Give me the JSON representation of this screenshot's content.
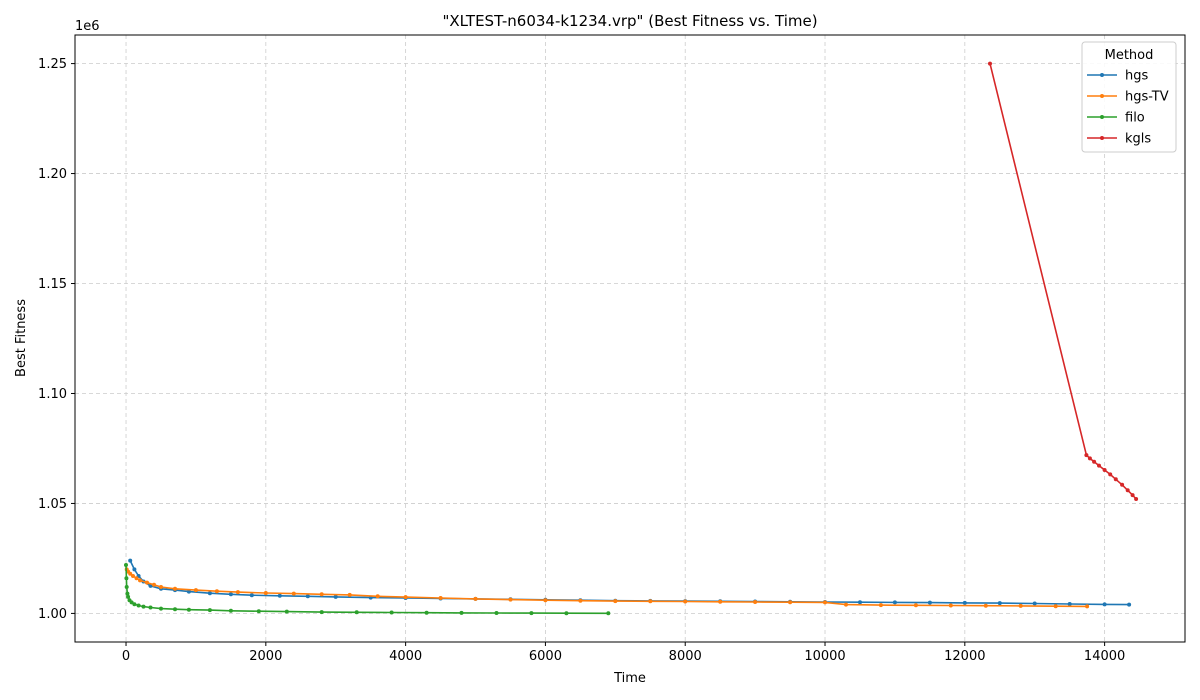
{
  "chart_data": {
    "type": "line",
    "title": "\"XLTEST-n6034-k1234.vrp\" (Best Fitness vs. Time)",
    "xlabel": "Time",
    "ylabel": "Best Fitness",
    "y_offset_label": "1e6",
    "xlim": [
      -730,
      15150
    ],
    "ylim": [
      987000,
      1263000
    ],
    "x_ticks": [
      0,
      2000,
      4000,
      6000,
      8000,
      10000,
      12000,
      14000
    ],
    "x_tick_labels": [
      "0",
      "2000",
      "4000",
      "6000",
      "8000",
      "10000",
      "12000",
      "14000"
    ],
    "y_ticks": [
      1000000,
      1050000,
      1100000,
      1150000,
      1200000,
      1250000
    ],
    "y_tick_labels": [
      "1.00",
      "1.05",
      "1.10",
      "1.15",
      "1.20",
      "1.25"
    ],
    "grid": true,
    "legend": {
      "title": "Method",
      "position": "top-right"
    },
    "series": [
      {
        "name": "hgs",
        "color": "#1f77b4",
        "x": [
          60,
          120,
          180,
          250,
          350,
          500,
          700,
          900,
          1200,
          1500,
          1800,
          2200,
          2600,
          3000,
          3500,
          4000,
          4500,
          5000,
          5500,
          6000,
          6500,
          7000,
          7500,
          8000,
          8500,
          9000,
          9500,
          10000,
          10500,
          11000,
          11500,
          12000,
          12500,
          13000,
          13500,
          14000,
          14350
        ],
        "values": [
          1024000,
          1020000,
          1017000,
          1014500,
          1012500,
          1011200,
          1010600,
          1009900,
          1009200,
          1008700,
          1008300,
          1008000,
          1007800,
          1007500,
          1007200,
          1007000,
          1006800,
          1006600,
          1006400,
          1006200,
          1006000,
          1005800,
          1005700,
          1005600,
          1005500,
          1005400,
          1005300,
          1005200,
          1005100,
          1005000,
          1004900,
          1004800,
          1004700,
          1004500,
          1004300,
          1004100,
          1004000
        ]
      },
      {
        "name": "hgs-TV",
        "color": "#ff7f0e",
        "x": [
          10,
          30,
          60,
          100,
          150,
          200,
          300,
          400,
          500,
          700,
          1000,
          1300,
          1600,
          2000,
          2400,
          2800,
          3200,
          3600,
          4000,
          4500,
          5000,
          5500,
          6000,
          6500,
          7000,
          7500,
          8000,
          8500,
          9000,
          9500,
          10000,
          10300,
          10800,
          11300,
          11800,
          12300,
          12800,
          13300,
          13750
        ],
        "values": [
          1020000,
          1019000,
          1018000,
          1017000,
          1016000,
          1015000,
          1014000,
          1013000,
          1012000,
          1011200,
          1010600,
          1010100,
          1009700,
          1009300,
          1009000,
          1008700,
          1008400,
          1007800,
          1007400,
          1007000,
          1006600,
          1006300,
          1006000,
          1005800,
          1005600,
          1005500,
          1005400,
          1005300,
          1005200,
          1005100,
          1005000,
          1004000,
          1003800,
          1003700,
          1003600,
          1003500,
          1003400,
          1003300,
          1003200
        ]
      },
      {
        "name": "filo",
        "color": "#2ca02c",
        "x": [
          0,
          5,
          10,
          20,
          30,
          50,
          80,
          120,
          180,
          250,
          350,
          500,
          700,
          900,
          1200,
          1500,
          1900,
          2300,
          2800,
          3300,
          3800,
          4300,
          4800,
          5300,
          5800,
          6300,
          6900
        ],
        "values": [
          1022000,
          1016000,
          1012000,
          1009000,
          1007500,
          1006000,
          1005000,
          1004200,
          1003600,
          1003100,
          1002700,
          1002200,
          1001900,
          1001700,
          1001500,
          1001200,
          1001000,
          1000800,
          1000600,
          1000500,
          1000400,
          1000300,
          1000250,
          1000200,
          1000150,
          1000100,
          1000050
        ]
      },
      {
        "name": "kgls",
        "color": "#d62728",
        "x": [
          12360,
          13740,
          13790,
          13850,
          13920,
          14000,
          14080,
          14160,
          14250,
          14330,
          14400,
          14450
        ],
        "values": [
          1250000,
          1072000,
          1070500,
          1069000,
          1067200,
          1065200,
          1063200,
          1061000,
          1058500,
          1056000,
          1053800,
          1052000
        ]
      }
    ]
  }
}
